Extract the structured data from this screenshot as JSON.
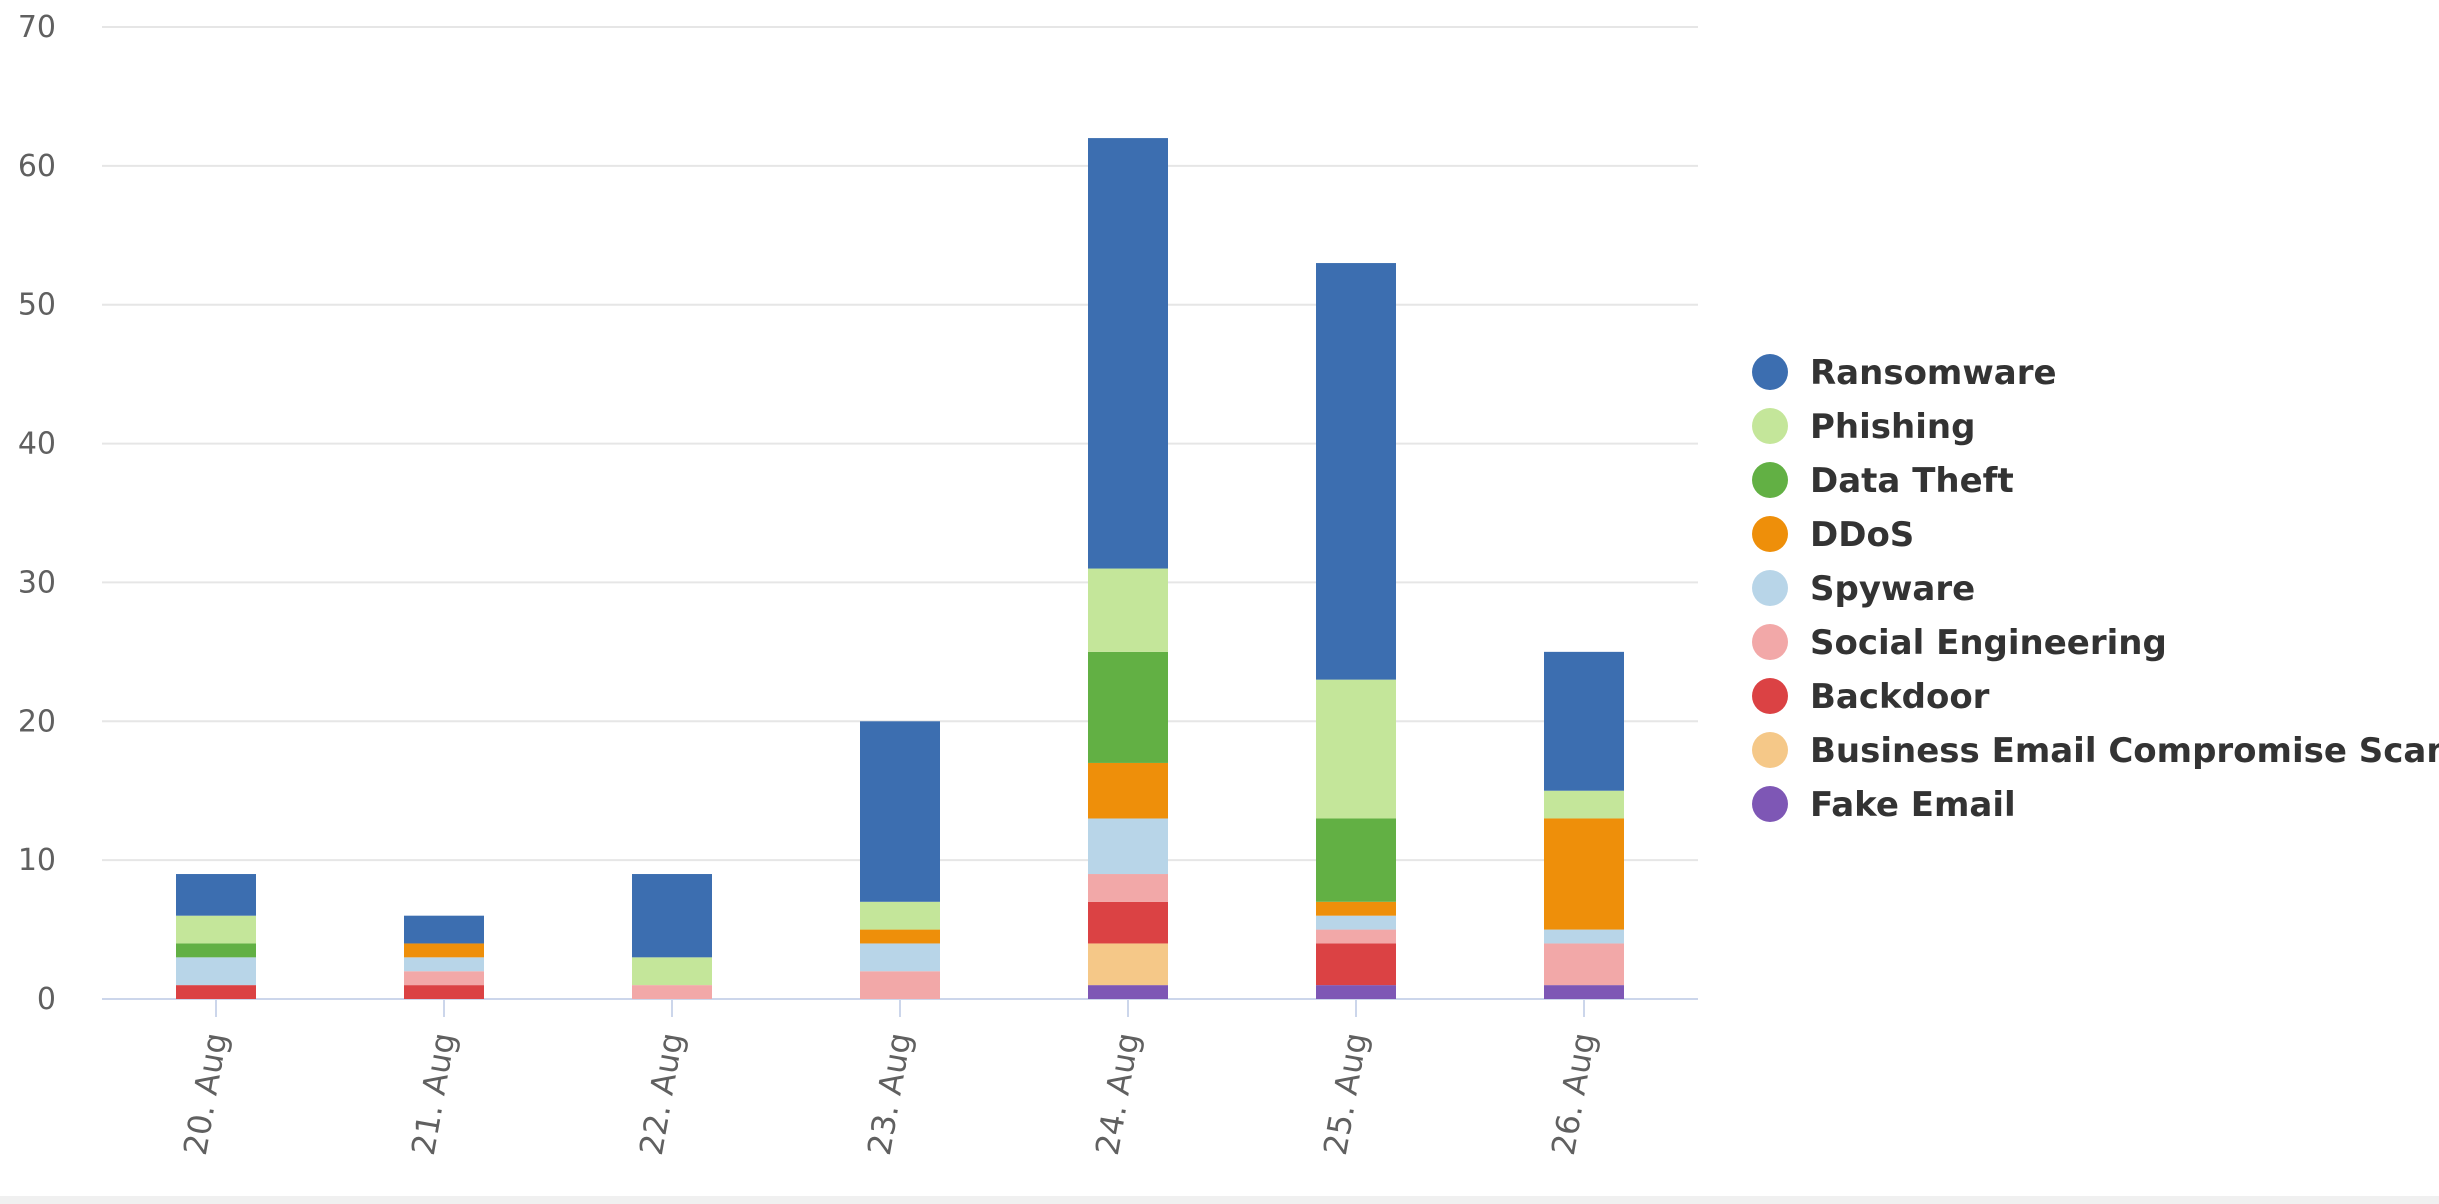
{
  "chart_data": {
    "type": "bar",
    "stacked": true,
    "categories": [
      "20. Aug",
      "21. Aug",
      "22. Aug",
      "23. Aug",
      "24. Aug",
      "25. Aug",
      "26. Aug"
    ],
    "ylim": [
      0,
      70
    ],
    "yticks": [
      0,
      10,
      20,
      30,
      40,
      50,
      60,
      70
    ],
    "grid": true,
    "legend_position": "right",
    "series": [
      {
        "name": "Fake Email",
        "color": "#7e57b5",
        "values": [
          0,
          0,
          0,
          0,
          1,
          1,
          1
        ]
      },
      {
        "name": "Business Email Compromise Scam",
        "color": "#f5c888",
        "values": [
          0,
          0,
          0,
          0,
          3,
          0,
          0
        ]
      },
      {
        "name": "Backdoor",
        "color": "#db4244",
        "values": [
          1,
          1,
          0,
          0,
          3,
          3,
          0
        ]
      },
      {
        "name": "Social Engineering",
        "color": "#f2a8a8",
        "values": [
          0,
          1,
          1,
          2,
          2,
          1,
          3
        ]
      },
      {
        "name": "Spyware",
        "color": "#b8d5e8",
        "values": [
          2,
          1,
          0,
          2,
          4,
          1,
          1
        ]
      },
      {
        "name": "DDoS",
        "color": "#ee8f0a",
        "values": [
          0,
          1,
          0,
          1,
          4,
          1,
          8
        ]
      },
      {
        "name": "Data Theft",
        "color": "#62b044",
        "values": [
          1,
          0,
          0,
          0,
          8,
          6,
          0
        ]
      },
      {
        "name": "Phishing",
        "color": "#c4e69a",
        "values": [
          2,
          0,
          2,
          2,
          6,
          10,
          2
        ]
      },
      {
        "name": "Ransomware",
        "color": "#3c6eb0",
        "values": [
          3,
          2,
          6,
          13,
          31,
          30,
          10
        ]
      }
    ],
    "legend_order": [
      "Ransomware",
      "Phishing",
      "Data Theft",
      "DDoS",
      "Spyware",
      "Social Engineering",
      "Backdoor",
      "Business Email Compromise Scam",
      "Fake Email"
    ],
    "title": "",
    "xlabel": "",
    "ylabel": ""
  }
}
